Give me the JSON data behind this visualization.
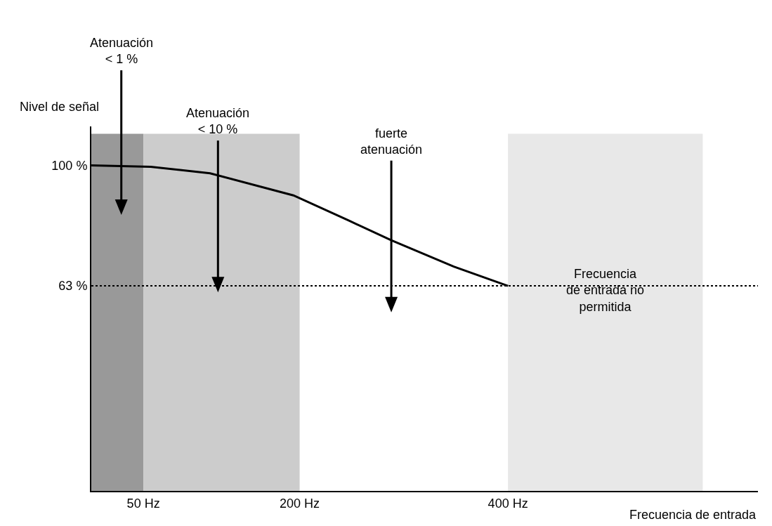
{
  "chart_data": {
    "type": "line",
    "xlabel": "Frecuencia de entrada",
    "ylabel": "Nivel de señal",
    "x": [
      0,
      57,
      114,
      194,
      247,
      288,
      348,
      400
    ],
    "series": [
      {
        "color": "#000000",
        "values": [
          100,
          99.6,
          97.6,
          90.8,
          83.1,
          77,
          68.9,
          63
        ]
      }
    ],
    "xlim": [
      0,
      640
    ],
    "ylim": [
      0,
      112
    ],
    "xticks": [
      {
        "value": 50,
        "label": "50 Hz"
      },
      {
        "value": 200,
        "label": "200 Hz"
      },
      {
        "value": 400,
        "label": "400 Hz"
      }
    ],
    "yticks": [
      {
        "value": 63,
        "label": "63 %"
      },
      {
        "value": 100,
        "label": "100 %"
      }
    ],
    "grid": false,
    "marker": "none",
    "line_style": "solid",
    "ref_lines": [
      {
        "axis": "y",
        "value": 63,
        "color": "#000000",
        "line_style": "dotted"
      }
    ],
    "bands": [
      {
        "axis": "x",
        "from": 0,
        "to": 50,
        "color": "#999999"
      },
      {
        "axis": "x",
        "from": 50,
        "to": 200,
        "color": "#cccccc"
      },
      {
        "axis": "x",
        "from": 400,
        "to": 587,
        "color": "#e8e8e8",
        "label": "Frecuencia\nde entrada no\npermitida"
      }
    ],
    "annotations": [
      "Atenuación\n< 1 %",
      "Atenuación\n< 10 %",
      "fuerte\natenuación"
    ]
  }
}
